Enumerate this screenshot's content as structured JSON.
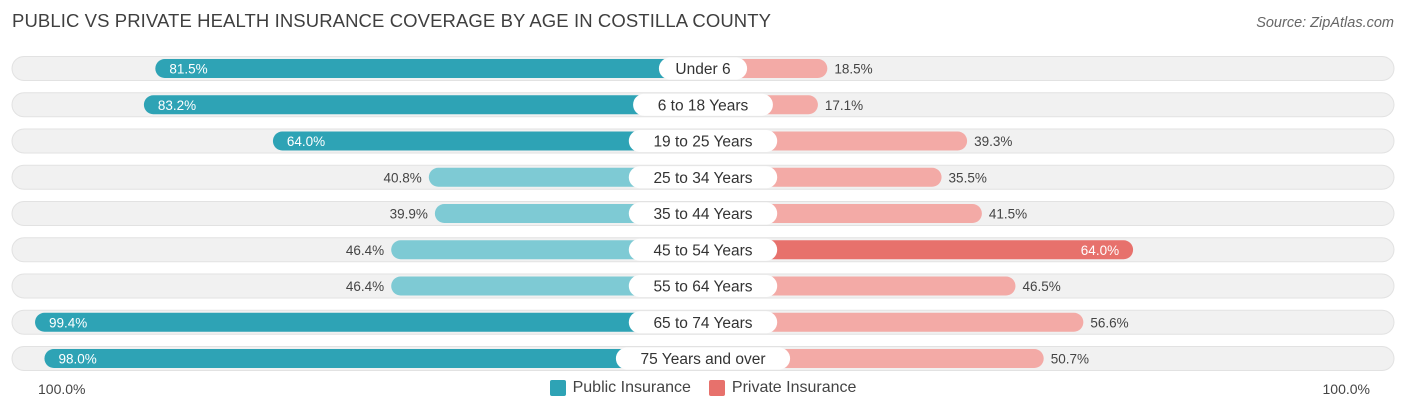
{
  "title": "PUBLIC VS PRIVATE HEALTH INSURANCE COVERAGE BY AGE IN COSTILLA COUNTY",
  "source": "Source: ZipAtlas.com",
  "axis": {
    "left_label": "100.0%",
    "right_label": "100.0%"
  },
  "legend": {
    "public": "Public Insurance",
    "private": "Private Insurance"
  },
  "colors": {
    "public_dark": "#2ea3b5",
    "public_light": "#7ecad4",
    "private_dark": "#e7716c",
    "private_light": "#f3aaa6",
    "track": "#f1f1f1"
  },
  "chart_data": {
    "type": "bar",
    "orientation": "horizontal-diverging",
    "title": "PUBLIC VS PRIVATE HEALTH INSURANCE COVERAGE BY AGE IN COSTILLA COUNTY",
    "categories": [
      "Under 6",
      "6 to 18 Years",
      "19 to 25 Years",
      "25 to 34 Years",
      "35 to 44 Years",
      "45 to 54 Years",
      "55 to 64 Years",
      "65 to 74 Years",
      "75 Years and over"
    ],
    "xlim": [
      -100,
      100
    ],
    "series": [
      {
        "name": "Public Insurance",
        "values": [
          81.5,
          83.2,
          64.0,
          40.8,
          39.9,
          46.4,
          46.4,
          99.4,
          98.0
        ],
        "labels": [
          "81.5%",
          "83.2%",
          "64.0%",
          "40.8%",
          "39.9%",
          "46.4%",
          "46.4%",
          "99.4%",
          "98.0%"
        ]
      },
      {
        "name": "Private Insurance",
        "values": [
          18.5,
          17.1,
          39.3,
          35.5,
          41.5,
          64.0,
          46.5,
          56.6,
          50.7
        ],
        "labels": [
          "18.5%",
          "17.1%",
          "39.3%",
          "35.5%",
          "41.5%",
          "64.0%",
          "46.5%",
          "56.6%",
          "50.7%"
        ]
      }
    ]
  }
}
